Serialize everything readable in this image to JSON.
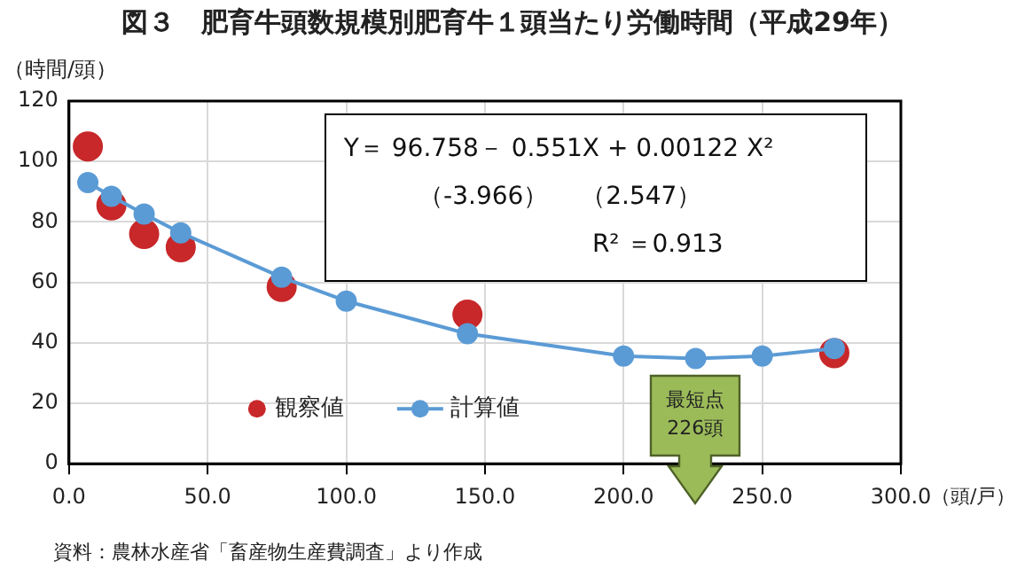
{
  "chart_data": {
    "type": "scatter",
    "title": "図３　肥育牛頭数規模別肥育牛１頭当たり労働時間（平成29年）",
    "ylabel": "（時間/頭）",
    "xlabel": "（頭/戸）",
    "series": [
      {
        "name": "観察値",
        "type": "scatter",
        "color": "#c8282a",
        "x": [
          6.8,
          15.3,
          27.1,
          40.3,
          76.7,
          143.7,
          276
        ],
        "values": [
          105,
          85.5,
          76,
          71.6,
          58.5,
          49.3,
          36.6
        ]
      },
      {
        "name": "計算値",
        "type": "line",
        "color": "#5b9bd5",
        "x": [
          6.8,
          15.3,
          27.1,
          40.3,
          76.7,
          100,
          143.7,
          200,
          226,
          250,
          276
        ],
        "values": [
          93,
          88.5,
          82.6,
          76.4,
          61.7,
          53.8,
          43,
          35.6,
          34.8,
          35.6,
          38.1
        ]
      }
    ],
    "xlim": [
      0,
      300
    ],
    "xticks": [
      {
        "value": 0,
        "label": "0.0"
      },
      {
        "value": 50,
        "label": "50.0"
      },
      {
        "value": 100,
        "label": "100.0"
      },
      {
        "value": 150,
        "label": "150.0"
      },
      {
        "value": 200,
        "label": "200.0"
      },
      {
        "value": 250,
        "label": "250.0"
      },
      {
        "value": 300,
        "label": "300.0"
      }
    ],
    "ylim": [
      0,
      120
    ],
    "yticks": [
      0,
      20,
      40,
      60,
      80,
      100,
      120
    ],
    "grid": true,
    "legend": "bottom",
    "marker": "circle",
    "annotations": [
      "Y＝ 96.758－ 0.551X + 0.00122 X²",
      "（-3.966）　 （2.547）",
      "R² ＝0.913",
      "最短点\n226頭",
      "資料：農林水産省「畜産物生産費調査」より作成"
    ]
  }
}
